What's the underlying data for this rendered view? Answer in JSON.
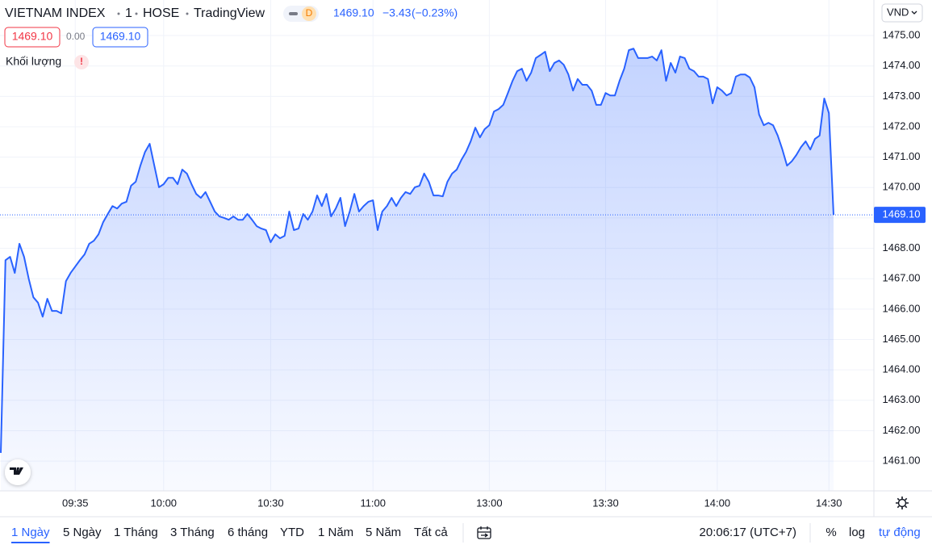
{
  "header": {
    "symbol": "VIETNAM INDEX",
    "interval": "1",
    "exchange": "HOSE",
    "source": "TradingView",
    "badge": "D",
    "last": "1469.10",
    "change": "−3.43",
    "change_pct": "(−0.23%)",
    "ohlc_left": "1469.10",
    "ohlc_mid": "0.00",
    "ohlc_right": "1469.10",
    "volume_label": "Khối lượng",
    "volume_warning": "!",
    "currency": "VND"
  },
  "chart_data": {
    "type": "area",
    "color": "#2962ff",
    "grid": true,
    "last_price_label": "1469.10",
    "values": [
      1461.27,
      1467.61,
      1467.72,
      1467.19,
      1468.15,
      1467.72,
      1467.0,
      1466.39,
      1466.21,
      1465.75,
      1466.34,
      1465.94,
      1465.94,
      1465.86,
      1466.92,
      1467.19,
      1467.4,
      1467.61,
      1467.8,
      1468.15,
      1468.25,
      1468.46,
      1468.86,
      1469.13,
      1469.39,
      1469.31,
      1469.47,
      1469.53,
      1470.06,
      1470.19,
      1470.72,
      1471.17,
      1471.44,
      1470.72,
      1470.01,
      1470.11,
      1470.32,
      1470.32,
      1470.11,
      1470.59,
      1470.46,
      1470.11,
      1469.79,
      1469.66,
      1469.85,
      1469.53,
      1469.21,
      1469.05,
      1469.0,
      1468.94,
      1469.05,
      1468.94,
      1468.94,
      1469.13,
      1468.94,
      1468.73,
      1468.65,
      1468.6,
      1468.2,
      1468.46,
      1468.33,
      1468.41,
      1469.21,
      1468.6,
      1468.65,
      1469.13,
      1468.94,
      1469.21,
      1469.74,
      1469.39,
      1469.79,
      1469.05,
      1469.31,
      1469.66,
      1468.73,
      1469.21,
      1469.79,
      1469.21,
      1469.39,
      1469.53,
      1469.58,
      1468.6,
      1469.21,
      1469.39,
      1469.66,
      1469.39,
      1469.66,
      1469.85,
      1469.79,
      1470.01,
      1470.06,
      1470.46,
      1470.19,
      1469.74,
      1469.74,
      1469.71,
      1470.19,
      1470.46,
      1470.59,
      1470.91,
      1471.17,
      1471.52,
      1471.97,
      1471.65,
      1471.92,
      1472.05,
      1472.5,
      1472.58,
      1472.72,
      1473.11,
      1473.51,
      1473.83,
      1473.91,
      1473.51,
      1473.78,
      1474.26,
      1474.36,
      1474.47,
      1473.83,
      1474.1,
      1474.18,
      1474.04,
      1473.72,
      1473.19,
      1473.57,
      1473.38,
      1473.38,
      1473.19,
      1472.72,
      1472.72,
      1473.11,
      1473.03,
      1473.03,
      1473.51,
      1473.91,
      1474.52,
      1474.57,
      1474.26,
      1474.26,
      1474.26,
      1474.31,
      1474.18,
      1474.52,
      1473.51,
      1474.1,
      1473.78,
      1474.31,
      1474.26,
      1473.91,
      1473.83,
      1473.65,
      1473.65,
      1473.57,
      1472.77,
      1473.3,
      1473.19,
      1473.03,
      1473.11,
      1473.65,
      1473.72,
      1473.72,
      1473.62,
      1473.3,
      1472.4,
      1472.05,
      1472.13,
      1472.05,
      1471.71,
      1471.25,
      1470.72,
      1470.86,
      1471.07,
      1471.33,
      1471.52,
      1471.25,
      1471.6,
      1471.71,
      1472.93,
      1472.45,
      1469.1
    ],
    "xlim": [
      0,
      179
    ],
    "xticks": [
      {
        "value": 16,
        "label": "09:35"
      },
      {
        "value": 35,
        "label": "10:00"
      },
      {
        "value": 58,
        "label": "10:30"
      },
      {
        "value": 80,
        "label": "11:00"
      },
      {
        "value": 105,
        "label": "13:00"
      },
      {
        "value": 130,
        "label": "13:30"
      },
      {
        "value": 154,
        "label": "14:00"
      },
      {
        "value": 178,
        "label": "14:30"
      }
    ],
    "ylim": [
      1460.02,
      1476.17
    ],
    "yticks": [
      {
        "value": 1461,
        "label": "1461.00"
      },
      {
        "value": 1462,
        "label": "1462.00"
      },
      {
        "value": 1463,
        "label": "1463.00"
      },
      {
        "value": 1464,
        "label": "1464.00"
      },
      {
        "value": 1465,
        "label": "1465.00"
      },
      {
        "value": 1466,
        "label": "1466.00"
      },
      {
        "value": 1467,
        "label": "1467.00"
      },
      {
        "value": 1468,
        "label": "1468.00"
      },
      {
        "value": 1469,
        "label": "1469.00"
      },
      {
        "value": 1470,
        "label": "1470.00"
      },
      {
        "value": 1471,
        "label": "1471.00"
      },
      {
        "value": 1472,
        "label": "1472.00"
      },
      {
        "value": 1473,
        "label": "1473.00"
      },
      {
        "value": 1474,
        "label": "1474.00"
      },
      {
        "value": 1475,
        "label": "1475.00"
      }
    ]
  },
  "footer": {
    "ranges": [
      "1 Ngày",
      "5 Ngày",
      "1 Tháng",
      "3 Tháng",
      "6 tháng",
      "YTD",
      "1 Năm",
      "5 Năm",
      "Tất cả"
    ],
    "time": "20:06:17 (UTC+7)",
    "percent": "%",
    "log": "log",
    "auto": "tự động"
  }
}
